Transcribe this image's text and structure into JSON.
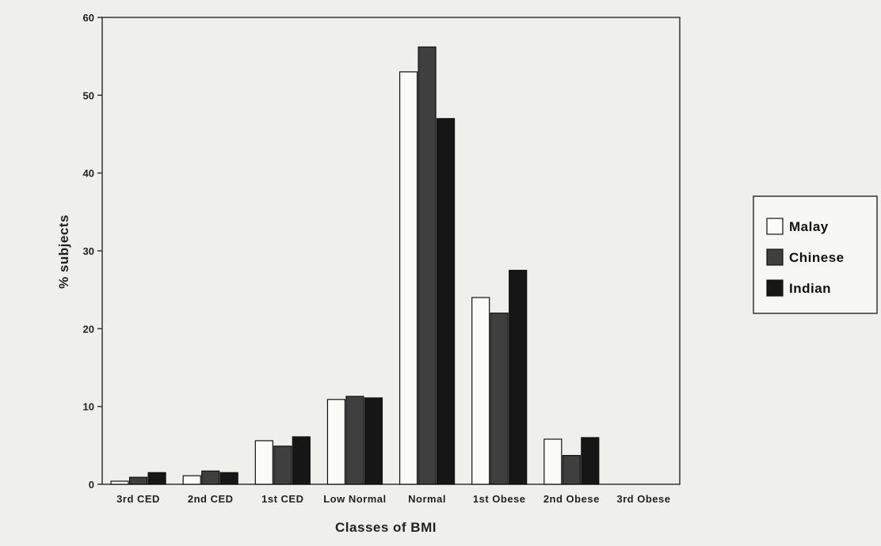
{
  "chart_data": {
    "type": "bar",
    "title": "",
    "xlabel": "Classes of BMI",
    "ylabel": "% subjects",
    "ylim": [
      0,
      60
    ],
    "yticks": [
      0,
      10,
      20,
      30,
      40,
      50,
      60
    ],
    "categories": [
      "3rd CED",
      "2nd CED",
      "1st CED",
      "Low Normal",
      "Normal",
      "1st Obese",
      "2nd Obese",
      "3rd Obese"
    ],
    "series": [
      {
        "name": "Malay",
        "fill": "#fbfbf8",
        "values": [
          0.4,
          1.1,
          5.6,
          10.9,
          53,
          24,
          5.8,
          0
        ]
      },
      {
        "name": "Chinese",
        "fill": "#3f3f3f",
        "values": [
          0.9,
          1.7,
          4.9,
          11.3,
          56.2,
          22,
          3.7,
          0
        ]
      },
      {
        "name": "Indian",
        "fill": "#161616",
        "values": [
          1.5,
          1.5,
          6.1,
          11.1,
          47,
          27.5,
          6,
          0
        ]
      }
    ],
    "legend_position": "right",
    "grid": false
  }
}
